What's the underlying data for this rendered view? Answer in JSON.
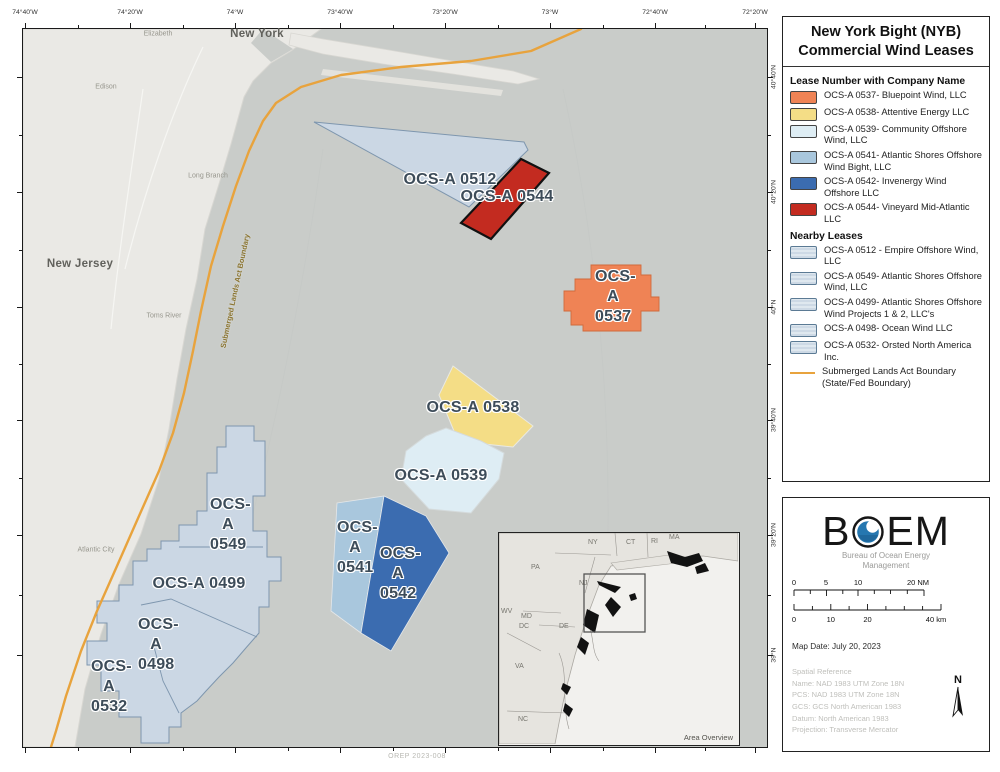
{
  "panel": {
    "title_line1": "New York Bight (NYB)",
    "title_line2": "Commercial Wind Leases",
    "section1_header": "Lease Number with Company Name",
    "lease_items": [
      {
        "label": "OCS-A 0537- Bluepoint Wind, LLC",
        "color": "#EF8355"
      },
      {
        "label": "OCS-A 0538- Attentive Energy LLC",
        "color": "#F4DD86"
      },
      {
        "label": "OCS-A 0539- Community Offshore Wind, LLC",
        "color": "#DEEDF4"
      },
      {
        "label": "OCS-A 0541- Atlantic Shores Offshore Wind Bight, LLC",
        "color": "#A9C7DD"
      },
      {
        "label": "OCS-A 0542- Invenergy Wind Offshore LLC",
        "color": "#3B6CB0"
      },
      {
        "label": "OCS-A 0544- Vineyard Mid-Atlantic LLC",
        "color": "#C32B20"
      }
    ],
    "section2_header": "Nearby Leases",
    "nearby_items": [
      {
        "label": "OCS-A 0512 -  Empire Offshore Wind, LLC"
      },
      {
        "label": "OCS-A 0549- Atlantic Shores Offshore Wind, LLC"
      },
      {
        "label": "OCS-A 0499- Atlantic Shores Offshore Wind Projects 1 & 2, LLC's"
      },
      {
        "label": "OCS-A 0498- Ocean Wind LLC"
      },
      {
        "label": "OCS-A 0532- Orsted North America Inc."
      }
    ],
    "boundary_item": "Submerged Lands Act Boundary (State/Fed Boundary)",
    "boundary_color": "#E8A33D"
  },
  "logo": {
    "letter_b": "B",
    "letters_em": "EM",
    "subtitle_line1": "Bureau of Ocean Energy",
    "subtitle_line2": "Management"
  },
  "scalebar": {
    "nm": [
      "0",
      "5",
      "10",
      "20 NM"
    ],
    "km": [
      "0",
      "10",
      "20",
      "40 km"
    ]
  },
  "map_date": "Map Date: July 20, 2023",
  "spatial_reference": [
    "Spatial Reference",
    "Name: NAD 1983 UTM Zone 18N",
    "PCS: NAD 1983 UTM Zone 18N",
    "GCS: GCS North American 1983",
    "Datum: North American 1983",
    "Projection: Transverse Mercator"
  ],
  "north_label": "N",
  "map": {
    "lon_labels": [
      "74°40'W",
      "74°20'W",
      "74°W",
      "73°40'W",
      "73°20'W",
      "73°W",
      "72°40'W",
      "72°20'W"
    ],
    "lat_labels": [
      "40°40'N",
      "40°20'N",
      "40°N",
      "39°40'N",
      "39°20'N",
      "39°N"
    ],
    "boundary_text": "Submerged Lands Act Boundary",
    "state_labels": [
      "New York",
      "New Jersey"
    ],
    "places": [
      "Elizabeth",
      "Edison",
      "Long Branch",
      "Toms River",
      "Atlantic City"
    ],
    "lease_labels": [
      "OCS-A 0512",
      "OCS-A 0544",
      "OCS-A 0537",
      "OCS-A 0538",
      "OCS-A 0539",
      "OCS-A 0541",
      "OCS-A 0542",
      "OCS-A 0549",
      "OCS-A 0499",
      "OCS-A 0498",
      "OCS-A 0532"
    ],
    "footnote": "OREP 2023-008"
  },
  "inset": {
    "states": [
      "NY",
      "CT",
      "RI",
      "MA",
      "PA",
      "NJ",
      "WV",
      "MD",
      "DC",
      "DE",
      "VA",
      "NC"
    ],
    "caption": "Area Overview"
  }
}
